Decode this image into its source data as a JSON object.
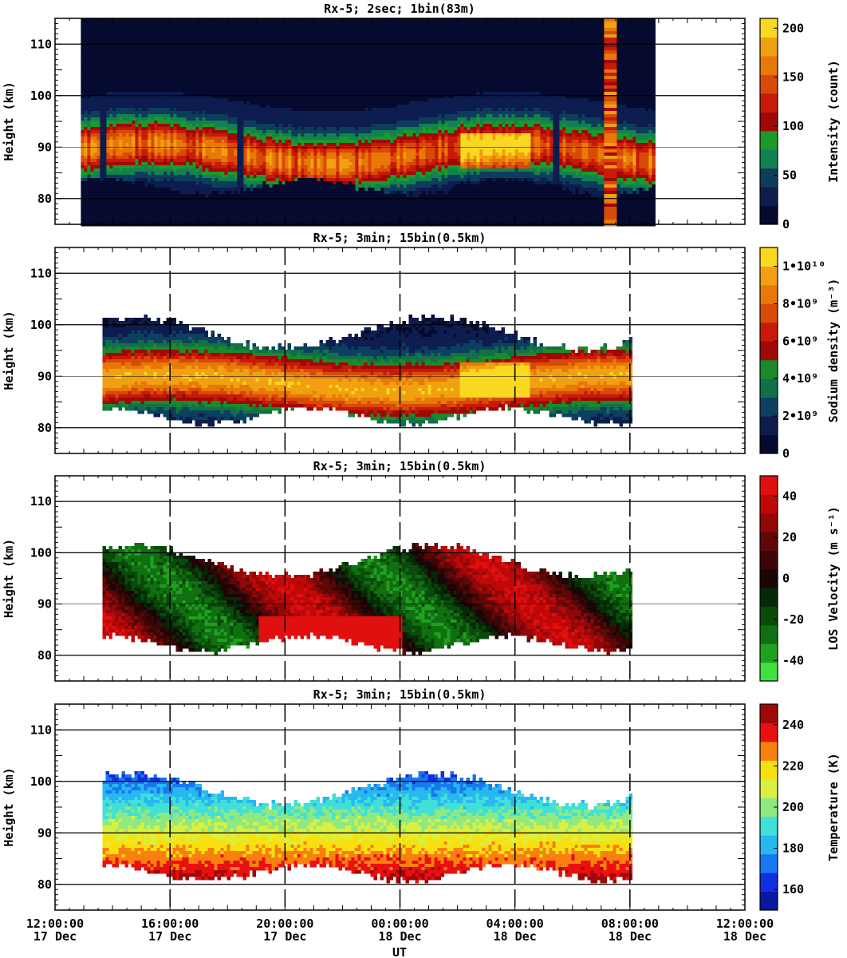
{
  "x_axis": {
    "label": "UT",
    "range_hours": [
      0,
      24
    ],
    "ticks": [
      {
        "hours": 0,
        "time": "12:00:00",
        "date": "17 Dec"
      },
      {
        "hours": 4,
        "time": "16:00:00",
        "date": "17 Dec"
      },
      {
        "hours": 8,
        "time": "20:00:00",
        "date": "17 Dec"
      },
      {
        "hours": 12,
        "time": "00:00:00",
        "date": "18 Dec"
      },
      {
        "hours": 16,
        "time": "04:00:00",
        "date": "18 Dec"
      },
      {
        "hours": 20,
        "time": "08:00:00",
        "date": "18 Dec"
      },
      {
        "hours": 24,
        "time": "12:00:00",
        "date": "18 Dec"
      }
    ]
  },
  "chart_data": [
    {
      "type": "heatmap",
      "title": "Rx-5;  2sec; 1bin(83m)",
      "ylabel": "Height (km)",
      "ylim": [
        75,
        115
      ],
      "yticks": [
        80,
        90,
        100,
        110
      ],
      "colorbar": {
        "label": "Intensity (count)",
        "range": [
          0,
          210
        ],
        "ticks": [
          {
            "v": 0,
            "t": "0"
          },
          {
            "v": 50,
            "t": "50"
          },
          {
            "v": 100,
            "t": "100"
          },
          {
            "v": 150,
            "t": "150"
          },
          {
            "v": 200,
            "t": "200"
          }
        ],
        "colors": [
          "#050a2e",
          "#0d1d4f",
          "#0d3d5a",
          "#128050",
          "#1a9a2a",
          "#a00808",
          "#c81a08",
          "#d84a08",
          "#e87808",
          "#f0a010",
          "#f8d820"
        ]
      },
      "data_extent_hours": [
        0.9,
        20.8
      ],
      "features": {
        "layer_peak_km": 88.5,
        "layer_bottom_km": 82,
        "layer_top_km": 98,
        "max_value": 200,
        "gaps_hours": [
          1.6,
          6.4,
          17.4
        ],
        "saturated_band_hours": [
          19.1,
          19.4
        ]
      }
    },
    {
      "type": "heatmap",
      "title": "Rx-5; 3min; 15bin(0.5km)",
      "ylabel": "Height (km)",
      "ylim": [
        75,
        115
      ],
      "yticks": [
        80,
        90,
        100,
        110
      ],
      "colorbar": {
        "label": "Sodium density (m⁻³)",
        "range": [
          0,
          11000000000.0
        ],
        "ticks": [
          {
            "v": 0,
            "t": "0"
          },
          {
            "v": 2000000000.0,
            "t": "2•10⁹"
          },
          {
            "v": 4000000000.0,
            "t": "4•10⁹"
          },
          {
            "v": 6000000000.0,
            "t": "6•10⁹"
          },
          {
            "v": 8000000000.0,
            "t": "8•10⁹"
          },
          {
            "v": 10000000000.0,
            "t": "1•10¹⁰"
          }
        ],
        "colors": [
          "#050a2e",
          "#0d1d4f",
          "#0d4060",
          "#127048",
          "#1a8a2a",
          "#a00808",
          "#c81a08",
          "#d84a08",
          "#e87808",
          "#f0a010",
          "#f8d820"
        ]
      },
      "data_extent_hours": [
        1.65,
        20.0
      ],
      "features": {
        "layer_peak_km": 89,
        "layer_bottom_km": 82,
        "layer_top_km": 101,
        "max_value": 10000000000.0,
        "max_near": "02:00-04:00 18 Dec, 88-92 km"
      }
    },
    {
      "type": "heatmap",
      "title": "Rx-5; 3min; 15bin(0.5km)",
      "ylabel": "Height (km)",
      "ylim": [
        75,
        115
      ],
      "yticks": [
        80,
        90,
        100,
        110
      ],
      "colorbar": {
        "label": "LOS Velocity (m s⁻¹)",
        "range": [
          -50,
          50
        ],
        "ticks": [
          {
            "v": -40,
            "t": "-40"
          },
          {
            "v": -20,
            "t": "-20"
          },
          {
            "v": 0,
            "t": "0"
          },
          {
            "v": 20,
            "t": "20"
          },
          {
            "v": 40,
            "t": "40"
          }
        ],
        "colors": [
          "#40e040",
          "#20a020",
          "#107010",
          "#0a4a0a",
          "#062a06",
          "#1a0606",
          "#3a0606",
          "#600808",
          "#900808",
          "#c00808",
          "#e01010"
        ]
      },
      "data_extent_hours": [
        1.65,
        20.0
      ],
      "features": {
        "layer_bottom_km": 82,
        "layer_top_km": 101,
        "range_shown": [
          -50,
          50
        ]
      }
    },
    {
      "type": "heatmap",
      "title": "Rx-5; 3min; 15bin(0.5km)",
      "ylabel": "Height (km)",
      "ylim": [
        75,
        115
      ],
      "yticks": [
        80,
        90,
        100,
        110
      ],
      "colorbar": {
        "label": "Temperature (K)",
        "range": [
          150,
          250
        ],
        "ticks": [
          {
            "v": 160,
            "t": "160"
          },
          {
            "v": 180,
            "t": "180"
          },
          {
            "v": 200,
            "t": "200"
          },
          {
            "v": 220,
            "t": "220"
          },
          {
            "v": 240,
            "t": "240"
          }
        ],
        "colors": [
          "#0818a0",
          "#1030e0",
          "#1878f0",
          "#28b8f0",
          "#40e0d8",
          "#90e880",
          "#d8f040",
          "#f8e010",
          "#f88010",
          "#e81010",
          "#a00808"
        ]
      },
      "data_extent_hours": [
        1.65,
        20.0
      ],
      "features": {
        "cold_top_km": 99,
        "warm_bottom_km": 84,
        "range_shown": [
          150,
          250
        ]
      }
    }
  ]
}
